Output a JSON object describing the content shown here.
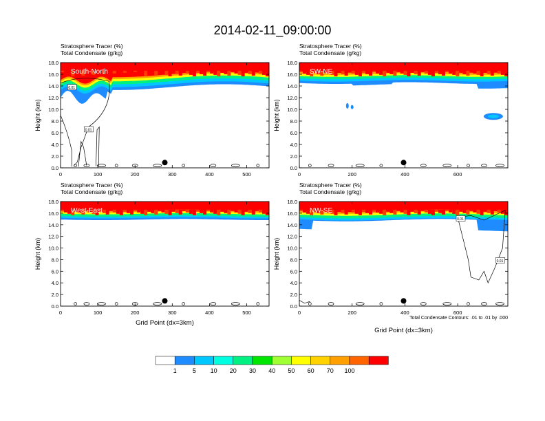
{
  "title": "2014-02-11_09:00:00",
  "panel_subtitle_1": "Stratosphere Tracer   (%)",
  "panel_subtitle_2": "Total Condensate   (g/kg)",
  "ylabel": "Height (km)",
  "xlabel": "Grid Point (dx=3km)",
  "contour_note": "Total Condensate Contours: .01 to .01 by .000",
  "colorbar": {
    "colors": [
      "#ffffff",
      "#1e8cff",
      "#00c8ff",
      "#00ffe0",
      "#00f082",
      "#00e600",
      "#a0ff32",
      "#ffff00",
      "#ffd200",
      "#ffa000",
      "#ff6400",
      "#ff0000"
    ],
    "labels": [
      "1",
      "5",
      "10",
      "20",
      "30",
      "40",
      "50",
      "60",
      "70",
      "100"
    ]
  },
  "chart_data": [
    {
      "type": "heatmap",
      "panel_label": "South-North",
      "title": "Stratosphere Tracer (%)",
      "xlabel": "",
      "ylabel": "Height (km)",
      "xlim": [
        0,
        560
      ],
      "ylim": [
        0,
        18
      ],
      "xticks": [
        "0",
        "100",
        "200",
        "300",
        "400",
        "500"
      ],
      "yticks": [
        "0.0",
        "2.0",
        "4.0",
        "6.0",
        "8.0",
        "10.0",
        "12.0",
        "14.0",
        "16.0",
        "18.0"
      ],
      "marker_x": 280,
      "contour_labels": [
        "0.01",
        "0.01"
      ]
    },
    {
      "type": "heatmap",
      "panel_label": "SW-NE",
      "title": "Stratosphere Tracer (%)",
      "xlabel": "",
      "ylabel": "Height (km)",
      "xlim": [
        0,
        790
      ],
      "ylim": [
        0,
        18
      ],
      "xticks": [
        "0",
        "200",
        "400",
        "600"
      ],
      "yticks": [
        "0.0",
        "2.0",
        "4.0",
        "6.0",
        "8.0",
        "10.0",
        "12.0",
        "14.0",
        "16.0",
        "18.0"
      ],
      "marker_x": 395,
      "contour_labels": []
    },
    {
      "type": "heatmap",
      "panel_label": "West-East",
      "title": "Stratosphere Tracer (%)",
      "xlabel": "Grid Point (dx=3km)",
      "ylabel": "Height (km)",
      "xlim": [
        0,
        560
      ],
      "ylim": [
        0,
        18
      ],
      "xticks": [
        "0",
        "100",
        "200",
        "300",
        "400",
        "500"
      ],
      "yticks": [
        "0.0",
        "2.0",
        "4.0",
        "6.0",
        "8.0",
        "10.0",
        "12.0",
        "14.0",
        "16.0",
        "18.0"
      ],
      "marker_x": 280,
      "contour_labels": []
    },
    {
      "type": "heatmap",
      "panel_label": "NW-SE",
      "title": "Stratosphere Tracer (%)",
      "xlabel": "Grid Point (dx=3km)",
      "ylabel": "Height (km)",
      "xlim": [
        0,
        790
      ],
      "ylim": [
        0,
        18
      ],
      "xticks": [
        "0",
        "200",
        "400",
        "600"
      ],
      "yticks": [
        "0.0",
        "2.0",
        "4.0",
        "6.0",
        "8.0",
        "10.0",
        "12.0",
        "14.0",
        "16.0",
        "18.0"
      ],
      "marker_x": 395,
      "contour_labels": [
        "0.01",
        "0.01"
      ]
    }
  ]
}
